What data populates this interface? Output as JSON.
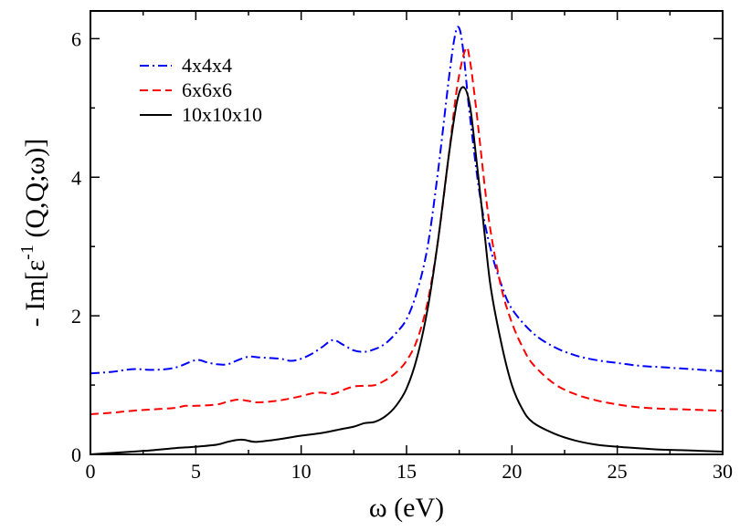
{
  "chart_data": {
    "type": "line",
    "title": "",
    "xlabel": "ω (eV)",
    "ylabel": "- Im[ε^-1 (Q,Q;ω)]",
    "xlim": [
      0,
      30
    ],
    "ylim": [
      0,
      6.4
    ],
    "xticks": [
      0,
      5,
      10,
      15,
      20,
      25,
      30
    ],
    "yticks": [
      0,
      2,
      4,
      6
    ],
    "legend_position": "top-left",
    "series": [
      {
        "name": "4x4x4",
        "color": "#0000ff",
        "style": "dash-dot",
        "points": [
          [
            0,
            1.17
          ],
          [
            1,
            1.19
          ],
          [
            2,
            1.23
          ],
          [
            3,
            1.22
          ],
          [
            4,
            1.25
          ],
          [
            5,
            1.36
          ],
          [
            5.5,
            1.33
          ],
          [
            6,
            1.3
          ],
          [
            6.5,
            1.3
          ],
          [
            7,
            1.36
          ],
          [
            7.5,
            1.41
          ],
          [
            8,
            1.4
          ],
          [
            9,
            1.38
          ],
          [
            9.5,
            1.35
          ],
          [
            10,
            1.38
          ],
          [
            10.5,
            1.45
          ],
          [
            11,
            1.55
          ],
          [
            11.5,
            1.65
          ],
          [
            12,
            1.58
          ],
          [
            12.5,
            1.5
          ],
          [
            13,
            1.48
          ],
          [
            13.5,
            1.52
          ],
          [
            14,
            1.6
          ],
          [
            14.5,
            1.75
          ],
          [
            15,
            1.95
          ],
          [
            15.5,
            2.35
          ],
          [
            16,
            3.0
          ],
          [
            16.5,
            4.1
          ],
          [
            17,
            5.4
          ],
          [
            17.3,
            6.05
          ],
          [
            17.5,
            6.15
          ],
          [
            17.7,
            5.8
          ],
          [
            18,
            4.9
          ],
          [
            18.5,
            3.7
          ],
          [
            19,
            2.95
          ],
          [
            19.5,
            2.45
          ],
          [
            20,
            2.1
          ],
          [
            21,
            1.75
          ],
          [
            22,
            1.55
          ],
          [
            23,
            1.43
          ],
          [
            24,
            1.36
          ],
          [
            25,
            1.32
          ],
          [
            26,
            1.28
          ],
          [
            27,
            1.26
          ],
          [
            28,
            1.24
          ],
          [
            29,
            1.22
          ],
          [
            30,
            1.2
          ]
        ]
      },
      {
        "name": "6x6x6",
        "color": "#ff0000",
        "style": "dashed",
        "points": [
          [
            0,
            0.58
          ],
          [
            1,
            0.6
          ],
          [
            2,
            0.63
          ],
          [
            3,
            0.65
          ],
          [
            4,
            0.67
          ],
          [
            4.5,
            0.7
          ],
          [
            5,
            0.7
          ],
          [
            6,
            0.72
          ],
          [
            6.5,
            0.76
          ],
          [
            7,
            0.79
          ],
          [
            7.5,
            0.77
          ],
          [
            8,
            0.75
          ],
          [
            9,
            0.78
          ],
          [
            10,
            0.84
          ],
          [
            10.5,
            0.88
          ],
          [
            11,
            0.89
          ],
          [
            11.5,
            0.87
          ],
          [
            12,
            0.93
          ],
          [
            12.5,
            0.98
          ],
          [
            13,
            0.99
          ],
          [
            13.5,
            1.0
          ],
          [
            14,
            1.07
          ],
          [
            14.5,
            1.18
          ],
          [
            15,
            1.35
          ],
          [
            15.5,
            1.65
          ],
          [
            16,
            2.2
          ],
          [
            16.5,
            3.1
          ],
          [
            17,
            4.3
          ],
          [
            17.4,
            5.3
          ],
          [
            17.8,
            5.85
          ],
          [
            18,
            5.7
          ],
          [
            18.3,
            5.0
          ],
          [
            18.7,
            3.9
          ],
          [
            19,
            3.2
          ],
          [
            19.5,
            2.4
          ],
          [
            20,
            1.9
          ],
          [
            20.5,
            1.55
          ],
          [
            21,
            1.3
          ],
          [
            22,
            1.02
          ],
          [
            23,
            0.87
          ],
          [
            24,
            0.78
          ],
          [
            25,
            0.72
          ],
          [
            26,
            0.68
          ],
          [
            27,
            0.66
          ],
          [
            28,
            0.65
          ],
          [
            29,
            0.64
          ],
          [
            30,
            0.63
          ]
        ]
      },
      {
        "name": "10x10x10",
        "color": "#000000",
        "style": "solid",
        "points": [
          [
            0,
            0.0
          ],
          [
            1,
            0.02
          ],
          [
            2,
            0.04
          ],
          [
            3,
            0.06
          ],
          [
            4,
            0.09
          ],
          [
            5,
            0.11
          ],
          [
            6,
            0.14
          ],
          [
            6.5,
            0.18
          ],
          [
            7,
            0.21
          ],
          [
            7.3,
            0.21
          ],
          [
            7.8,
            0.18
          ],
          [
            8.5,
            0.2
          ],
          [
            9,
            0.22
          ],
          [
            10,
            0.27
          ],
          [
            11,
            0.31
          ],
          [
            12,
            0.37
          ],
          [
            12.5,
            0.4
          ],
          [
            13,
            0.45
          ],
          [
            13.5,
            0.47
          ],
          [
            14,
            0.55
          ],
          [
            14.5,
            0.7
          ],
          [
            15,
            0.95
          ],
          [
            15.5,
            1.4
          ],
          [
            16,
            2.1
          ],
          [
            16.5,
            3.1
          ],
          [
            17,
            4.3
          ],
          [
            17.4,
            5.1
          ],
          [
            17.7,
            5.3
          ],
          [
            18,
            5.05
          ],
          [
            18.3,
            4.3
          ],
          [
            18.7,
            3.2
          ],
          [
            19,
            2.4
          ],
          [
            19.5,
            1.6
          ],
          [
            20,
            1.0
          ],
          [
            20.5,
            0.65
          ],
          [
            21,
            0.46
          ],
          [
            22,
            0.3
          ],
          [
            23,
            0.2
          ],
          [
            24,
            0.14
          ],
          [
            25,
            0.11
          ],
          [
            26,
            0.09
          ],
          [
            27,
            0.07
          ],
          [
            28,
            0.06
          ],
          [
            29,
            0.05
          ],
          [
            30,
            0.04
          ]
        ]
      }
    ]
  }
}
